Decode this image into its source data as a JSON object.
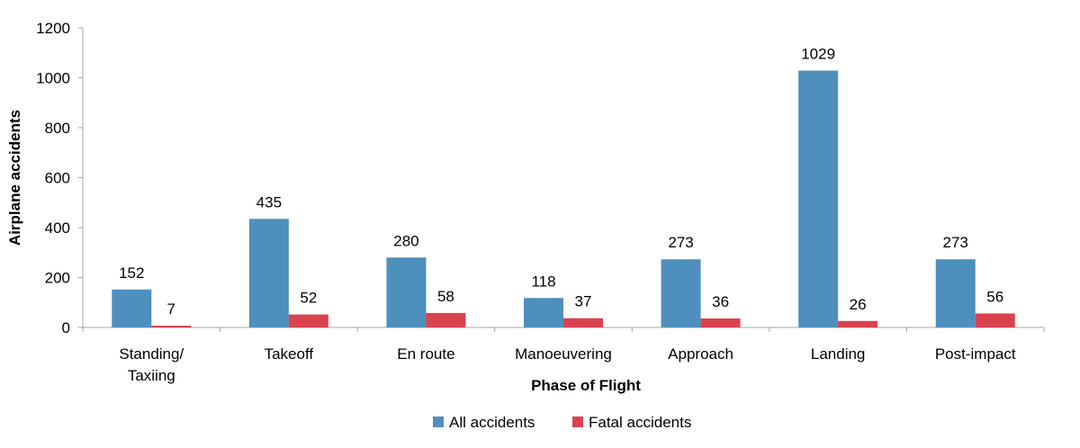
{
  "chart_data": {
    "type": "bar",
    "categories": [
      [
        "Standing/",
        "Taxiing"
      ],
      [
        "Takeoff"
      ],
      [
        "En route"
      ],
      [
        "Manoeuvering"
      ],
      [
        "Approach"
      ],
      [
        "Landing"
      ],
      [
        "Post-impact"
      ]
    ],
    "series": [
      {
        "name": "All accidents",
        "color": "#4f8fbd",
        "values": [
          152,
          435,
          280,
          118,
          273,
          1029,
          273
        ]
      },
      {
        "name": "Fatal accidents",
        "color": "#d9434e",
        "values": [
          7,
          52,
          58,
          37,
          36,
          26,
          56
        ]
      }
    ],
    "xlabel": "Phase of Flight",
    "ylabel": "Airplane accidents",
    "ylim": [
      0,
      1200
    ],
    "yticks": [
      0,
      200,
      400,
      600,
      800,
      1000,
      1200
    ],
    "grid": false,
    "legend_position": "bottom-center",
    "axis_color": "#a6a6a6"
  }
}
